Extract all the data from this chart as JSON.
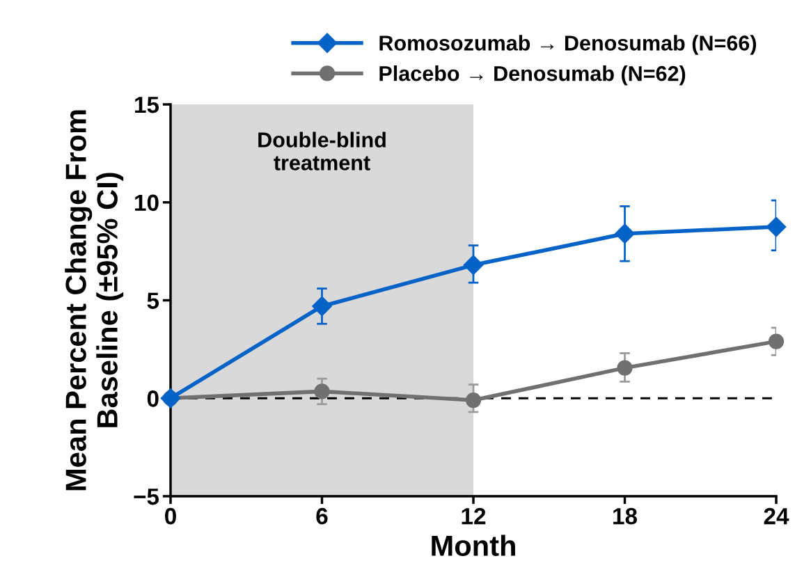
{
  "chart_data": {
    "type": "line",
    "xlabel": "Month",
    "ylabel": "Mean Percent Change From\nBaseline (±95% CI)",
    "x": [
      0,
      6,
      12,
      18,
      24
    ],
    "series": [
      {
        "name": "Romosozumab → Denosumab (N=66)",
        "color": "#0563c8",
        "marker": "diamond",
        "values": [
          0,
          4.7,
          6.8,
          8.4,
          8.75
        ],
        "errors": [
          null,
          [
            3.8,
            5.6
          ],
          [
            5.9,
            7.8
          ],
          [
            7.0,
            9.8
          ],
          [
            7.55,
            10.1
          ]
        ]
      },
      {
        "name": "Placebo → Denosumab (N=62)",
        "color": "#707070",
        "marker": "circle",
        "values": [
          0,
          0.35,
          -0.1,
          1.55,
          2.9
        ],
        "errors": [
          null,
          [
            -0.3,
            1.0
          ],
          [
            -0.7,
            0.7
          ],
          [
            0.85,
            2.3
          ],
          [
            2.2,
            3.6
          ]
        ]
      }
    ],
    "xlim": [
      0,
      24
    ],
    "xticks": [
      0,
      6,
      12,
      18,
      24
    ],
    "ylim": [
      -5,
      15
    ],
    "yticks": [
      {
        "value": -5,
        "label": "−5"
      },
      0,
      5,
      10,
      15
    ],
    "ref_lines": [
      {
        "axis": "y",
        "value": 0,
        "color": "#000000",
        "line_style": "dashed"
      }
    ],
    "bands": [
      {
        "axis": "x",
        "from": 0,
        "to": 12,
        "label": "Double-blind\ntreatment",
        "color": "#d9d9d9"
      }
    ],
    "legend": "top right",
    "grid": false
  }
}
